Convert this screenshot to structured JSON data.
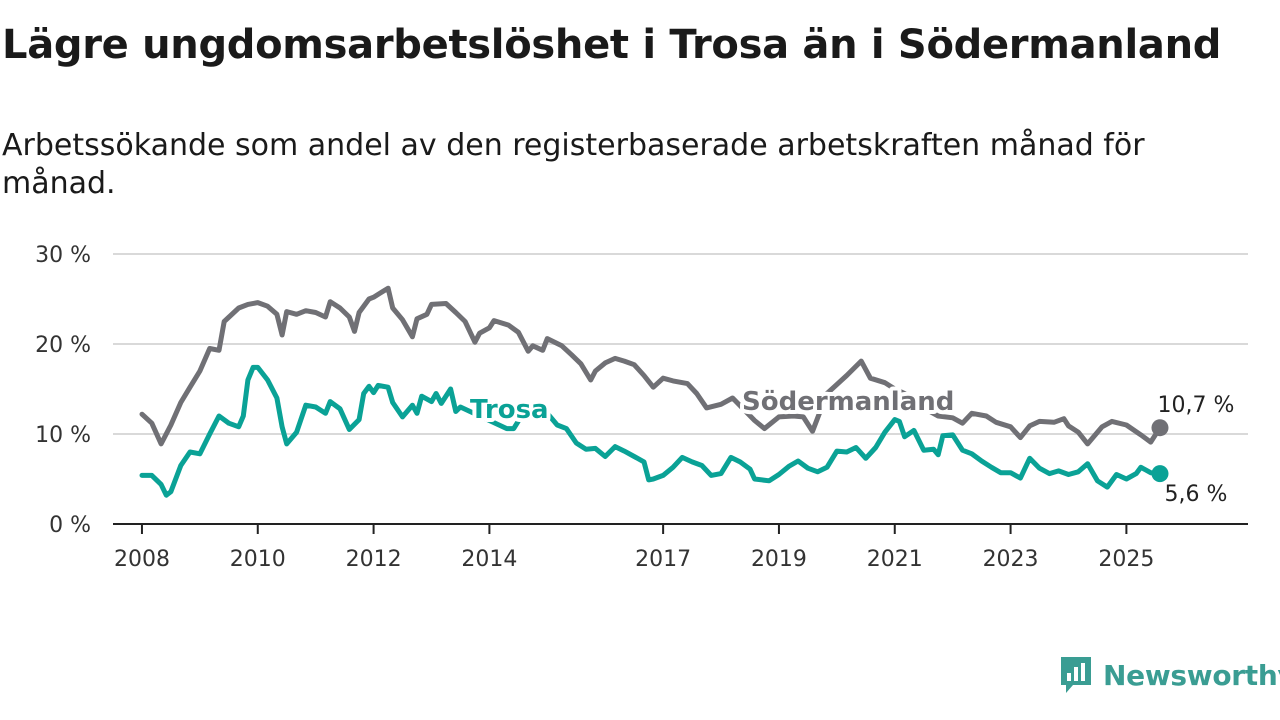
{
  "title": "Lägre ungdomsarbetslöshet i Trosa än i Södermanland",
  "subtitle": "Arbetssökande som andel av den registerbaserade arbetskraften månad för månad.",
  "brand": "Newsworthy",
  "colors": {
    "trosa": "#0aa296",
    "sodermanland": "#707075",
    "grid": "#d9d9d9",
    "axis": "#222222",
    "brand": "#3a9d93"
  },
  "chart_data": {
    "type": "line",
    "title": "Lägre ungdomsarbetslöshet i Trosa än i Södermanland",
    "subtitle": "Arbetssökande som andel av den registerbaserade arbetskraften månad för månad.",
    "y_unit": "%",
    "ylim": [
      0,
      30
    ],
    "y_ticks": [
      0,
      10,
      20,
      30
    ],
    "y_tick_labels": [
      "0 %",
      "10 %",
      "20 %",
      "30 %"
    ],
    "x_ticks": [
      2008,
      2010,
      2012,
      2014,
      2017,
      2019,
      2021,
      2023,
      2025
    ],
    "x_tick_labels": [
      "2008",
      "2010",
      "2012",
      "2014",
      "2017",
      "2019",
      "2021",
      "2023",
      "2025"
    ],
    "grid": true,
    "series": [
      {
        "name": "Södermanland",
        "color": "#707075",
        "end_label": "10,7 %",
        "points": [
          [
            2008.0,
            12.2
          ],
          [
            2008.17,
            11.2
          ],
          [
            2008.33,
            8.9
          ],
          [
            2008.5,
            11.0
          ],
          [
            2008.67,
            13.5
          ],
          [
            2008.83,
            15.2
          ],
          [
            2009.0,
            17.0
          ],
          [
            2009.17,
            19.5
          ],
          [
            2009.33,
            19.3
          ],
          [
            2009.42,
            22.5
          ],
          [
            2009.67,
            24.0
          ],
          [
            2009.83,
            24.4
          ],
          [
            2010.0,
            24.6
          ],
          [
            2010.17,
            24.2
          ],
          [
            2010.33,
            23.3
          ],
          [
            2010.42,
            21.0
          ],
          [
            2010.5,
            23.6
          ],
          [
            2010.67,
            23.3
          ],
          [
            2010.83,
            23.7
          ],
          [
            2011.0,
            23.5
          ],
          [
            2011.17,
            23.0
          ],
          [
            2011.25,
            24.7
          ],
          [
            2011.42,
            24.0
          ],
          [
            2011.58,
            23.0
          ],
          [
            2011.67,
            21.4
          ],
          [
            2011.75,
            23.5
          ],
          [
            2011.92,
            25.0
          ],
          [
            2012.0,
            25.2
          ],
          [
            2012.25,
            26.2
          ],
          [
            2012.33,
            24.0
          ],
          [
            2012.5,
            22.7
          ],
          [
            2012.67,
            20.8
          ],
          [
            2012.75,
            22.8
          ],
          [
            2012.92,
            23.3
          ],
          [
            2013.0,
            24.4
          ],
          [
            2013.25,
            24.5
          ],
          [
            2013.42,
            23.5
          ],
          [
            2013.58,
            22.5
          ],
          [
            2013.75,
            20.2
          ],
          [
            2013.83,
            21.2
          ],
          [
            2014.0,
            21.8
          ],
          [
            2014.08,
            22.6
          ],
          [
            2014.33,
            22.1
          ],
          [
            2014.5,
            21.3
          ],
          [
            2014.67,
            19.2
          ],
          [
            2014.75,
            19.8
          ],
          [
            2014.92,
            19.3
          ],
          [
            2015.0,
            20.6
          ],
          [
            2015.25,
            19.8
          ],
          [
            2015.42,
            18.8
          ],
          [
            2015.58,
            17.8
          ],
          [
            2015.75,
            16.0
          ],
          [
            2015.83,
            17.0
          ],
          [
            2016.0,
            17.9
          ],
          [
            2016.17,
            18.4
          ],
          [
            2016.33,
            18.1
          ],
          [
            2016.5,
            17.7
          ],
          [
            2016.67,
            16.5
          ],
          [
            2016.83,
            15.2
          ],
          [
            2017.0,
            16.2
          ],
          [
            2017.17,
            15.9
          ],
          [
            2017.42,
            15.6
          ],
          [
            2017.58,
            14.5
          ],
          [
            2017.75,
            12.9
          ],
          [
            2018.0,
            13.3
          ],
          [
            2018.2,
            14.0
          ],
          [
            2018.58,
            11.5
          ],
          [
            2018.75,
            10.6
          ],
          [
            2019.0,
            11.9
          ],
          [
            2019.25,
            12.0
          ],
          [
            2019.42,
            11.9
          ],
          [
            2019.58,
            10.3
          ],
          [
            2019.83,
            14.5
          ],
          [
            2020.17,
            16.5
          ],
          [
            2020.42,
            18.1
          ],
          [
            2020.58,
            16.2
          ],
          [
            2020.83,
            15.7
          ],
          [
            2021.0,
            15.0
          ],
          [
            2021.17,
            14.5
          ],
          [
            2021.42,
            13.2
          ],
          [
            2021.58,
            12.6
          ],
          [
            2021.75,
            12.0
          ],
          [
            2022.0,
            11.8
          ],
          [
            2022.17,
            11.2
          ],
          [
            2022.33,
            12.3
          ],
          [
            2022.58,
            12.0
          ],
          [
            2022.75,
            11.3
          ],
          [
            2023.0,
            10.8
          ],
          [
            2023.17,
            9.6
          ],
          [
            2023.33,
            10.9
          ],
          [
            2023.5,
            11.4
          ],
          [
            2023.75,
            11.3
          ],
          [
            2023.92,
            11.7
          ],
          [
            2024.0,
            10.9
          ],
          [
            2024.17,
            10.2
          ],
          [
            2024.33,
            8.9
          ],
          [
            2024.58,
            10.8
          ],
          [
            2024.75,
            11.4
          ],
          [
            2025.0,
            11.0
          ],
          [
            2025.25,
            9.9
          ],
          [
            2025.42,
            9.1
          ],
          [
            2025.58,
            10.7
          ]
        ]
      },
      {
        "name": "Trosa",
        "color": "#0aa296",
        "end_label": "5,6 %",
        "points": [
          [
            2008.0,
            5.4
          ],
          [
            2008.17,
            5.4
          ],
          [
            2008.33,
            4.4
          ],
          [
            2008.42,
            3.2
          ],
          [
            2008.5,
            3.6
          ],
          [
            2008.67,
            6.5
          ],
          [
            2008.83,
            8.0
          ],
          [
            2009.0,
            7.8
          ],
          [
            2009.17,
            10.0
          ],
          [
            2009.33,
            12.0
          ],
          [
            2009.5,
            11.2
          ],
          [
            2009.67,
            10.8
          ],
          [
            2009.75,
            12.0
          ],
          [
            2009.83,
            16.0
          ],
          [
            2009.92,
            17.4
          ],
          [
            2010.0,
            17.4
          ],
          [
            2010.17,
            16.0
          ],
          [
            2010.33,
            14.0
          ],
          [
            2010.42,
            10.8
          ],
          [
            2010.5,
            8.9
          ],
          [
            2010.67,
            10.2
          ],
          [
            2010.83,
            13.2
          ],
          [
            2011.0,
            13.0
          ],
          [
            2011.17,
            12.3
          ],
          [
            2011.25,
            13.6
          ],
          [
            2011.42,
            12.8
          ],
          [
            2011.58,
            10.5
          ],
          [
            2011.75,
            11.6
          ],
          [
            2011.83,
            14.5
          ],
          [
            2011.92,
            15.3
          ],
          [
            2012.0,
            14.6
          ],
          [
            2012.08,
            15.4
          ],
          [
            2012.25,
            15.2
          ],
          [
            2012.33,
            13.5
          ],
          [
            2012.5,
            11.9
          ],
          [
            2012.67,
            13.2
          ],
          [
            2012.75,
            12.3
          ],
          [
            2012.83,
            14.2
          ],
          [
            2013.0,
            13.6
          ],
          [
            2013.08,
            14.5
          ],
          [
            2013.17,
            13.4
          ],
          [
            2013.33,
            15.0
          ],
          [
            2013.42,
            12.5
          ],
          [
            2013.5,
            13.0
          ],
          [
            2014.3,
            10.6
          ],
          [
            2014.42,
            10.6
          ],
          [
            2014.67,
            13.2
          ],
          [
            2014.83,
            12.3
          ],
          [
            2015.0,
            12.3
          ],
          [
            2015.17,
            11.0
          ],
          [
            2015.33,
            10.6
          ],
          [
            2015.5,
            9.0
          ],
          [
            2015.67,
            8.3
          ],
          [
            2015.83,
            8.4
          ],
          [
            2016.0,
            7.5
          ],
          [
            2016.17,
            8.6
          ],
          [
            2016.33,
            8.1
          ],
          [
            2016.5,
            7.5
          ],
          [
            2016.67,
            6.9
          ],
          [
            2016.75,
            4.9
          ],
          [
            2016.83,
            5.0
          ],
          [
            2017.0,
            5.4
          ],
          [
            2017.17,
            6.3
          ],
          [
            2017.33,
            7.4
          ],
          [
            2017.5,
            6.9
          ],
          [
            2017.67,
            6.5
          ],
          [
            2017.83,
            5.4
          ],
          [
            2018.0,
            5.6
          ],
          [
            2018.17,
            7.4
          ],
          [
            2018.33,
            6.9
          ],
          [
            2018.5,
            6.1
          ],
          [
            2018.58,
            5.0
          ],
          [
            2018.83,
            4.8
          ],
          [
            2019.0,
            5.5
          ],
          [
            2019.17,
            6.4
          ],
          [
            2019.33,
            7.0
          ],
          [
            2019.5,
            6.2
          ],
          [
            2019.67,
            5.8
          ],
          [
            2019.83,
            6.3
          ],
          [
            2020.0,
            8.1
          ],
          [
            2020.17,
            8.0
          ],
          [
            2020.33,
            8.5
          ],
          [
            2020.5,
            7.3
          ],
          [
            2020.67,
            8.5
          ],
          [
            2020.83,
            10.2
          ],
          [
            2021.0,
            11.6
          ],
          [
            2021.08,
            11.4
          ],
          [
            2021.17,
            9.7
          ],
          [
            2021.33,
            10.4
          ],
          [
            2021.5,
            8.2
          ],
          [
            2021.67,
            8.3
          ],
          [
            2021.75,
            7.7
          ],
          [
            2021.83,
            9.8
          ],
          [
            2022.0,
            9.9
          ],
          [
            2022.17,
            8.2
          ],
          [
            2022.33,
            7.8
          ],
          [
            2022.5,
            7.0
          ],
          [
            2022.67,
            6.3
          ],
          [
            2022.83,
            5.7
          ],
          [
            2023.0,
            5.7
          ],
          [
            2023.17,
            5.1
          ],
          [
            2023.33,
            7.3
          ],
          [
            2023.5,
            6.2
          ],
          [
            2023.67,
            5.6
          ],
          [
            2023.83,
            5.9
          ],
          [
            2024.0,
            5.5
          ],
          [
            2024.17,
            5.8
          ],
          [
            2024.33,
            6.7
          ],
          [
            2024.5,
            4.8
          ],
          [
            2024.67,
            4.1
          ],
          [
            2024.83,
            5.5
          ],
          [
            2025.0,
            5.0
          ],
          [
            2025.17,
            5.6
          ],
          [
            2025.25,
            6.3
          ],
          [
            2025.42,
            5.7
          ],
          [
            2025.58,
            5.6
          ]
        ]
      }
    ]
  }
}
